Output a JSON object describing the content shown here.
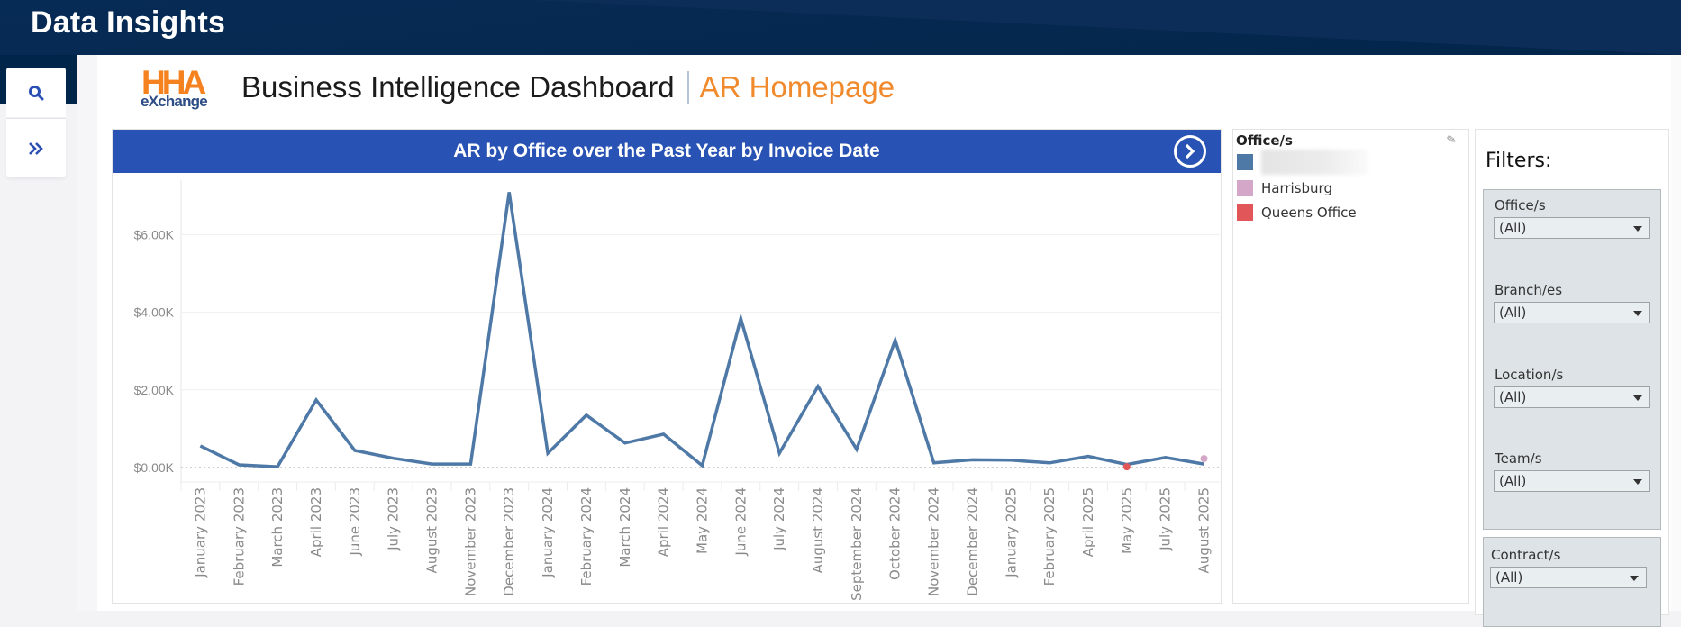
{
  "app": {
    "title": "Data Insights"
  },
  "sidebar": {
    "search_icon": "search-icon",
    "expand_icon": "double-chevron-right-icon"
  },
  "header": {
    "logo_top": "HHA",
    "logo_bottom": "eXchange",
    "title": "Business Intelligence Dashboard",
    "subtitle": "AR Homepage"
  },
  "chart_panel": {
    "title": "AR by Office over the Past Year by Invoice Date",
    "nav_icon": "circle-chevron-right-icon"
  },
  "legend": {
    "title": "Office/s",
    "items": [
      {
        "label": "",
        "color": "#4e79a7",
        "redacted": true
      },
      {
        "label": "Harrisburg",
        "color": "#d4a6c8"
      },
      {
        "label": "Queens Office",
        "color": "#e15759"
      }
    ]
  },
  "filters": {
    "title": "Filters:",
    "items": [
      {
        "label": "Office/s",
        "value": "(All)"
      },
      {
        "label": "Branch/es",
        "value": "(All)"
      },
      {
        "label": "Location/s",
        "value": "(All)"
      },
      {
        "label": "Team/s",
        "value": "(All)"
      },
      {
        "label": "Contract/s",
        "value": "(All)"
      }
    ]
  },
  "chart_data": {
    "type": "line",
    "title": "AR by Office over the Past Year by Invoice Date",
    "xlabel": "",
    "ylabel": "",
    "ylim": [
      -0.3,
      7.3
    ],
    "yticks": [
      0,
      2,
      4,
      6
    ],
    "ytick_labels": [
      "$0.00K",
      "$2.00K",
      "$4.00K",
      "$6.00K"
    ],
    "grid": true,
    "legend_position": "right",
    "categories": [
      "January 2023",
      "February 2023",
      "March 2023",
      "April 2023",
      "June 2023",
      "July 2023",
      "August 2023",
      "November 2023",
      "December 2023",
      "January 2024",
      "February 2024",
      "March 2024",
      "April 2024",
      "May 2024",
      "June 2024",
      "July 2024",
      "August 2024",
      "September 2024",
      "October 2024",
      "November 2024",
      "December 2024",
      "January 2025",
      "February 2025",
      "April 2025",
      "May 2025",
      "July 2025",
      "August 2025"
    ],
    "series": [
      {
        "name": "[redacted office]",
        "color": "#4e79a7",
        "style": "line",
        "values": [
          0.56,
          0.07,
          0.02,
          1.74,
          0.44,
          0.24,
          0.09,
          0.09,
          7.09,
          0.37,
          1.35,
          0.63,
          0.86,
          0.05,
          3.84,
          0.37,
          2.09,
          0.47,
          3.28,
          0.12,
          0.2,
          0.19,
          0.12,
          0.29,
          0.08,
          0.26,
          0.09
        ]
      },
      {
        "name": "Harrisburg",
        "color": "#d4a6c8",
        "style": "point",
        "values": [
          null,
          null,
          null,
          null,
          null,
          null,
          null,
          null,
          null,
          null,
          null,
          null,
          null,
          null,
          null,
          null,
          null,
          null,
          null,
          null,
          null,
          null,
          null,
          null,
          null,
          null,
          0.23
        ]
      },
      {
        "name": "Queens Office",
        "color": "#e15759",
        "style": "point",
        "values": [
          null,
          null,
          null,
          null,
          null,
          null,
          null,
          null,
          null,
          null,
          null,
          null,
          null,
          null,
          null,
          null,
          null,
          null,
          null,
          null,
          null,
          null,
          null,
          null,
          0.02,
          null,
          null
        ]
      }
    ],
    "units": "thousands USD"
  }
}
